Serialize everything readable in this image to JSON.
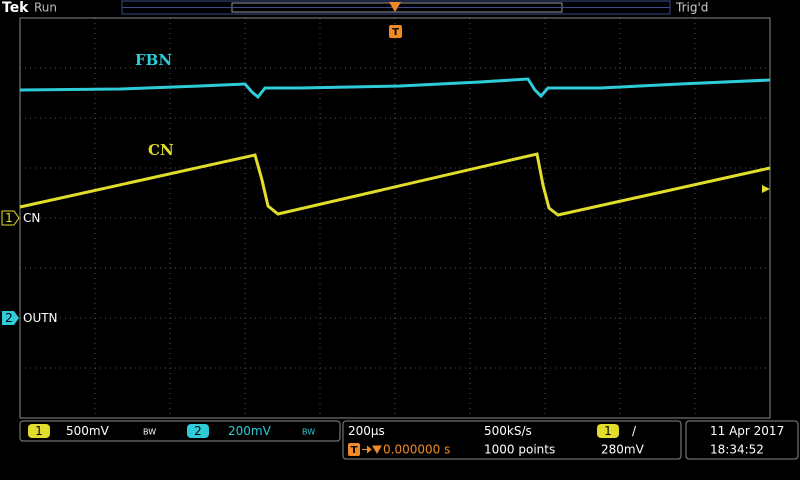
{
  "header": {
    "brand": "Tek",
    "status": "Run",
    "trigger_status": "Trig'd",
    "trigger_marker": "T"
  },
  "trace_labels": [
    "FBN",
    "CN"
  ],
  "channel_markers": [
    {
      "number": "1",
      "label": "CN"
    },
    {
      "number": "2",
      "label": "OUTN"
    }
  ],
  "readout": {
    "channel_1": {
      "number": "1",
      "scale": "500mV",
      "bandwidth": "BW"
    },
    "channel_2": {
      "number": "2",
      "scale": "200mV",
      "bandwidth": "BW"
    },
    "timebase": {
      "scale": "200µs",
      "sample_rate": "500kS/s",
      "trigger_marker": "T",
      "trigger_position": "0.000000 s",
      "record_length": "1000 points"
    },
    "trigger": {
      "source": "1",
      "slope": "/",
      "level": "280mV"
    },
    "date": "11 Apr 2017",
    "time": "18:34:52"
  }
}
